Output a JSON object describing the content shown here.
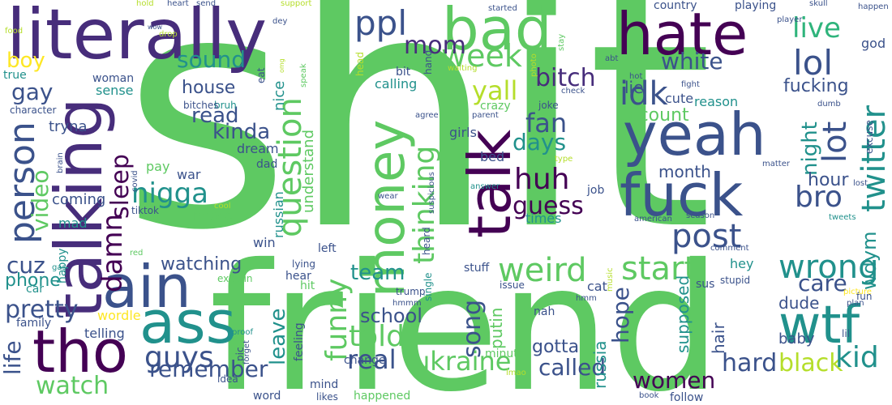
{
  "palette": {
    "background": "#ffffff",
    "purple": "#440154",
    "indigo": "#3b528b",
    "teal": "#21918c",
    "green": "#5ec962",
    "yellow": "#fde725"
  },
  "words": [
    {
      "text": "shit",
      "color": "#5ec962",
      "size": 400
    },
    {
      "text": "friend",
      "color": "#5ec962",
      "size": 216
    },
    {
      "text": "literally",
      "color": "#472d7b",
      "size": 86
    },
    {
      "text": "talking",
      "color": "#472d7b",
      "size": 80
    },
    {
      "text": "bad",
      "color": "#5ec962",
      "size": 72
    },
    {
      "text": "hate",
      "color": "#440154",
      "size": 72
    },
    {
      "text": "yeah",
      "color": "#3b528b",
      "size": 72
    },
    {
      "text": "fuck",
      "color": "#3b528b",
      "size": 72
    },
    {
      "text": "talk",
      "color": "#440154",
      "size": 72
    },
    {
      "text": "ain",
      "color": "#3b528b",
      "size": 72
    },
    {
      "text": "ass",
      "color": "#21918c",
      "size": 72
    },
    {
      "text": "tho",
      "color": "#440154",
      "size": 72
    },
    {
      "text": "money",
      "color": "#5ec962",
      "size": 64
    },
    {
      "text": "wtf",
      "color": "#21918c",
      "size": 64
    },
    {
      "text": "ppl",
      "color": "#3b528b",
      "size": 42
    },
    {
      "text": "lol",
      "color": "#3b528b",
      "size": 42
    },
    {
      "text": "live",
      "color": "#2fb47c",
      "size": 34
    },
    {
      "text": "week",
      "color": "#5ec962",
      "size": 38
    },
    {
      "text": "mom",
      "color": "#472d7b",
      "size": 30
    },
    {
      "text": "bitch",
      "color": "#472d7b",
      "size": 30
    },
    {
      "text": "idk",
      "color": "#3b528b",
      "size": 40
    },
    {
      "text": "white",
      "color": "#3b528b",
      "size": 28
    },
    {
      "text": "sound",
      "color": "#21918c",
      "size": 28
    },
    {
      "text": "boy",
      "color": "#fde725",
      "size": 26
    },
    {
      "text": "gay",
      "color": "#3b528b",
      "size": 28
    },
    {
      "text": "house",
      "color": "#3b528b",
      "size": 22
    },
    {
      "text": "yall",
      "color": "#b5de2b",
      "size": 32
    },
    {
      "text": "lie",
      "color": "#3b528b",
      "size": 20
    },
    {
      "text": "fucking",
      "color": "#3b528b",
      "size": 22
    },
    {
      "text": "twitter",
      "color": "#21918c",
      "size": 40
    },
    {
      "text": "person",
      "color": "#3b528b",
      "size": 44
    },
    {
      "text": "question",
      "color": "#5ec962",
      "size": 40
    },
    {
      "text": "fan",
      "color": "#3b528b",
      "size": 32
    },
    {
      "text": "huh",
      "color": "#440154",
      "size": 36
    },
    {
      "text": "days",
      "color": "#21918c",
      "size": 28
    },
    {
      "text": "bro",
      "color": "#3b528b",
      "size": 36
    },
    {
      "text": "nigga",
      "color": "#21918c",
      "size": 34
    },
    {
      "text": "kinda",
      "color": "#3b528b",
      "size": 26
    },
    {
      "text": "read",
      "color": "#3b528b",
      "size": 26
    },
    {
      "text": "video",
      "color": "#5ec962",
      "size": 28
    },
    {
      "text": "sleep",
      "color": "#440154",
      "size": 30
    },
    {
      "text": "damn",
      "color": "#440154",
      "size": 34
    },
    {
      "text": "thinking",
      "color": "#5ec962",
      "size": 36
    },
    {
      "text": "guess",
      "color": "#440154",
      "size": 30
    },
    {
      "text": "post",
      "color": "#3b528b",
      "size": 40
    },
    {
      "text": "lot",
      "color": "#3b528b",
      "size": 40
    },
    {
      "text": "night",
      "color": "#21918c",
      "size": 26
    },
    {
      "text": "month",
      "color": "#3b528b",
      "size": 20
    },
    {
      "text": "wdym",
      "color": "#21918c",
      "size": 24
    },
    {
      "text": "hour",
      "color": "#3b528b",
      "size": 22
    },
    {
      "text": "account",
      "color": "#5ec962",
      "size": 22
    },
    {
      "text": "cute",
      "color": "#3b528b",
      "size": 16
    },
    {
      "text": "reason",
      "color": "#21918c",
      "size": 16
    },
    {
      "text": "cuz",
      "color": "#3b528b",
      "size": 28
    },
    {
      "text": "phone",
      "color": "#21918c",
      "size": 22
    },
    {
      "text": "pretty",
      "color": "#3b528b",
      "size": 30
    },
    {
      "text": "weird",
      "color": "#5ec962",
      "size": 40
    },
    {
      "text": "start",
      "color": "#5ec962",
      "size": 40
    },
    {
      "text": "wrong",
      "color": "#21918c",
      "size": 40
    },
    {
      "text": "care",
      "color": "#3b528b",
      "size": 28
    },
    {
      "text": "team",
      "color": "#21918c",
      "size": 26
    },
    {
      "text": "watching",
      "color": "#3b528b",
      "size": 22
    },
    {
      "text": "funny",
      "color": "#5ec962",
      "size": 36
    },
    {
      "text": "told",
      "color": "#5ec962",
      "size": 36
    },
    {
      "text": "song",
      "color": "#3b528b",
      "size": 30
    },
    {
      "text": "school",
      "color": "#3b528b",
      "size": 24
    },
    {
      "text": "leave",
      "color": "#21918c",
      "size": 26
    },
    {
      "text": "hope",
      "color": "#3b528b",
      "size": 28
    },
    {
      "text": "dude",
      "color": "#3b528b",
      "size": 20
    },
    {
      "text": "hair",
      "color": "#3b528b",
      "size": 20
    },
    {
      "text": "life",
      "color": "#3b528b",
      "size": 28
    },
    {
      "text": "guys",
      "color": "#3b528b",
      "size": 36
    },
    {
      "text": "remember",
      "color": "#3b528b",
      "size": 28
    },
    {
      "text": "real",
      "color": "#3b528b",
      "size": 32
    },
    {
      "text": "ukraine",
      "color": "#5ec962",
      "size": 32
    },
    {
      "text": "called",
      "color": "#3b528b",
      "size": 28
    },
    {
      "text": "women",
      "color": "#440154",
      "size": 28
    },
    {
      "text": "hard",
      "color": "#3b528b",
      "size": 30
    },
    {
      "text": "black",
      "color": "#b5de2b",
      "size": 30
    },
    {
      "text": "kid",
      "color": "#21918c",
      "size": 36
    },
    {
      "text": "watch",
      "color": "#5ec962",
      "size": 30
    },
    {
      "text": "baby",
      "color": "#3b528b",
      "size": 18
    },
    {
      "text": "gotta",
      "color": "#3b528b",
      "size": 22
    },
    {
      "text": "russia",
      "color": "#21918c",
      "size": 20
    },
    {
      "text": "putin",
      "color": "#5ec962",
      "size": 20
    },
    {
      "text": "supposed",
      "color": "#21918c",
      "size": 20
    },
    {
      "text": "tryna",
      "color": "#3b528b",
      "size": 18
    },
    {
      "text": "sense",
      "color": "#21918c",
      "size": 16
    },
    {
      "text": "true",
      "color": "#21918c",
      "size": 14
    },
    {
      "text": "woman",
      "color": "#3b528b",
      "size": 14
    },
    {
      "text": "nice",
      "color": "#21918c",
      "size": 18
    },
    {
      "text": "understand",
      "color": "#5ec962",
      "size": 18
    },
    {
      "text": "pay",
      "color": "#5ec962",
      "size": 16
    },
    {
      "text": "war",
      "color": "#3b528b",
      "size": 16
    },
    {
      "text": "dream",
      "color": "#3b528b",
      "size": 16
    },
    {
      "text": "dad",
      "color": "#3b528b",
      "size": 14
    },
    {
      "text": "coming",
      "color": "#3b528b",
      "size": 18
    },
    {
      "text": "movie",
      "color": "#5ec962",
      "size": 16
    },
    {
      "text": "mad",
      "color": "#21918c",
      "size": 16
    },
    {
      "text": "win",
      "color": "#3b528b",
      "size": 16
    },
    {
      "text": "russian",
      "color": "#21918c",
      "size": 16
    },
    {
      "text": "times",
      "color": "#21918c",
      "size": 16
    },
    {
      "text": "job",
      "color": "#3b528b",
      "size": 14
    },
    {
      "text": "bed",
      "color": "#3b528b",
      "size": 16
    },
    {
      "text": "girls",
      "color": "#3b528b",
      "size": 16
    },
    {
      "text": "crazy",
      "color": "#5ec962",
      "size": 14
    },
    {
      "text": "left",
      "color": "#3b528b",
      "size": 14
    },
    {
      "text": "hey",
      "color": "#21918c",
      "size": 16
    },
    {
      "text": "sus",
      "color": "#3b528b",
      "size": 14
    },
    {
      "text": "cat",
      "color": "#3b528b",
      "size": 16
    },
    {
      "text": "hit",
      "color": "#5ec962",
      "size": 14
    },
    {
      "text": "hear",
      "color": "#3b528b",
      "size": 14
    },
    {
      "text": "minute",
      "color": "#5ec962",
      "size": 14
    },
    {
      "text": "change",
      "color": "#3b528b",
      "size": 14
    },
    {
      "text": "nah",
      "color": "#3b528b",
      "size": 14
    },
    {
      "text": "telling",
      "color": "#3b528b",
      "size": 16
    },
    {
      "text": "wordle",
      "color": "#fde725",
      "size": 16
    },
    {
      "text": "family",
      "color": "#3b528b",
      "size": 14
    },
    {
      "text": "car",
      "color": "#21918c",
      "size": 14
    },
    {
      "text": "happy",
      "color": "#21918c",
      "size": 14
    },
    {
      "text": "feeling",
      "color": "#3b528b",
      "size": 14
    },
    {
      "text": "stuff",
      "color": "#3b528b",
      "size": 14
    },
    {
      "text": "hmm",
      "color": "#3b528b",
      "size": 10
    },
    {
      "text": "music",
      "color": "#b5de2b",
      "size": 10
    },
    {
      "text": "fun",
      "color": "#3b528b",
      "size": 12
    },
    {
      "text": "plan",
      "color": "#3b528b",
      "size": 10
    },
    {
      "text": "picture",
      "color": "#fde725",
      "size": 10
    },
    {
      "text": "lil",
      "color": "#3b528b",
      "size": 12
    },
    {
      "text": "stupid",
      "color": "#3b528b",
      "size": 12
    },
    {
      "text": "issue",
      "color": "#3b528b",
      "size": 12
    },
    {
      "text": "trump",
      "color": "#3b528b",
      "size": 12
    },
    {
      "text": "single",
      "color": "#21918c",
      "size": 12
    },
    {
      "text": "hmmm",
      "color": "#3b528b",
      "size": 10
    },
    {
      "text": "happened",
      "color": "#5ec962",
      "size": 14
    },
    {
      "text": "likes",
      "color": "#3b528b",
      "size": 12
    },
    {
      "text": "mind",
      "color": "#3b528b",
      "size": 14
    },
    {
      "text": "word",
      "color": "#3b528b",
      "size": 14
    },
    {
      "text": "idea",
      "color": "#3b528b",
      "size": 12
    },
    {
      "text": "pic",
      "color": "#3b528b",
      "size": 12
    },
    {
      "text": "forget",
      "color": "#3b528b",
      "size": 10
    },
    {
      "text": "proof",
      "color": "#21918c",
      "size": 10
    },
    {
      "text": "explain",
      "color": "#5ec962",
      "size": 12
    },
    {
      "text": "gas",
      "color": "#21918c",
      "size": 10
    },
    {
      "text": "red",
      "color": "#5ec962",
      "size": 10
    },
    {
      "text": "cool",
      "color": "#b5de2b",
      "size": 10
    },
    {
      "text": "lying",
      "color": "#3b528b",
      "size": 12
    },
    {
      "text": "tiktok",
      "color": "#3b528b",
      "size": 12
    },
    {
      "text": "covid",
      "color": "#3b528b",
      "size": 10
    },
    {
      "text": "brain",
      "color": "#3b528b",
      "size": 10
    },
    {
      "text": "bruh",
      "color": "#21918c",
      "size": 12
    },
    {
      "text": "bitches",
      "color": "#3b528b",
      "size": 12
    },
    {
      "text": "character",
      "color": "#3b528b",
      "size": 12
    },
    {
      "text": "agree",
      "color": "#3b528b",
      "size": 10
    },
    {
      "text": "parent",
      "color": "#3b528b",
      "size": 10
    },
    {
      "text": "joke",
      "color": "#3b528b",
      "size": 12
    },
    {
      "text": "photo",
      "color": "#b5de2b",
      "size": 10
    },
    {
      "text": "check",
      "color": "#3b528b",
      "size": 10
    },
    {
      "text": "hot",
      "color": "#3b528b",
      "size": 10
    },
    {
      "text": "fight",
      "color": "#3b528b",
      "size": 10
    },
    {
      "text": "dumb",
      "color": "#3b528b",
      "size": 10
    },
    {
      "text": "excuse",
      "color": "#3b528b",
      "size": 12
    },
    {
      "text": "lost",
      "color": "#3b528b",
      "size": 10
    },
    {
      "text": "matter",
      "color": "#3b528b",
      "size": 10
    },
    {
      "text": "type",
      "color": "#b5de2b",
      "size": 10
    },
    {
      "text": "tweets",
      "color": "#21918c",
      "size": 10
    },
    {
      "text": "season",
      "color": "#3b528b",
      "size": 10
    },
    {
      "text": "comment",
      "color": "#3b528b",
      "size": 10
    },
    {
      "text": "american",
      "color": "#3b528b",
      "size": 10
    },
    {
      "text": "answer",
      "color": "#21918c",
      "size": 10
    },
    {
      "text": "wear",
      "color": "#3b528b",
      "size": 10
    },
    {
      "text": "heard",
      "color": "#3b528b",
      "size": 12
    },
    {
      "text": "suspicious",
      "color": "#3b528b",
      "size": 10
    },
    {
      "text": "lmao",
      "color": "#b5de2b",
      "size": 10
    },
    {
      "text": "book",
      "color": "#3b528b",
      "size": 10
    },
    {
      "text": "follow",
      "color": "#3b528b",
      "size": 14
    },
    {
      "text": "calling",
      "color": "#21918c",
      "size": 16
    },
    {
      "text": "head",
      "color": "#b5de2b",
      "size": 12
    },
    {
      "text": "waiting",
      "color": "#b5de2b",
      "size": 10
    },
    {
      "text": "speak",
      "color": "#5ec962",
      "size": 10
    },
    {
      "text": "omg",
      "color": "#b5de2b",
      "size": 8
    },
    {
      "text": "bit",
      "color": "#3b528b",
      "size": 14
    },
    {
      "text": "hand",
      "color": "#3b528b",
      "size": 12
    },
    {
      "text": "eat",
      "color": "#3b528b",
      "size": 12
    },
    {
      "text": "dey",
      "color": "#3b528b",
      "size": 10
    },
    {
      "text": "support",
      "color": "#b5de2b",
      "size": 10
    },
    {
      "text": "started",
      "color": "#3b528b",
      "size": 10
    },
    {
      "text": "stay",
      "color": "#5ec962",
      "size": 10
    },
    {
      "text": "abt",
      "color": "#3b528b",
      "size": 10
    },
    {
      "text": "country",
      "color": "#3b528b",
      "size": 14
    },
    {
      "text": "playing",
      "color": "#3b528b",
      "size": 14
    },
    {
      "text": "skull",
      "color": "#3b528b",
      "size": 10
    },
    {
      "text": "player",
      "color": "#3b528b",
      "size": 10
    },
    {
      "text": "god",
      "color": "#3b528b",
      "size": 16
    },
    {
      "text": "happen",
      "color": "#3b528b",
      "size": 10
    },
    {
      "text": "heart",
      "color": "#3b528b",
      "size": 10
    },
    {
      "text": "hold",
      "color": "#b5de2b",
      "size": 10
    },
    {
      "text": "send",
      "color": "#3b528b",
      "size": 10
    },
    {
      "text": "wow",
      "color": "#3b528b",
      "size": 8
    },
    {
      "text": "drop",
      "color": "#b5de2b",
      "size": 10
    },
    {
      "text": "food",
      "color": "#b5de2b",
      "size": 10
    }
  ]
}
